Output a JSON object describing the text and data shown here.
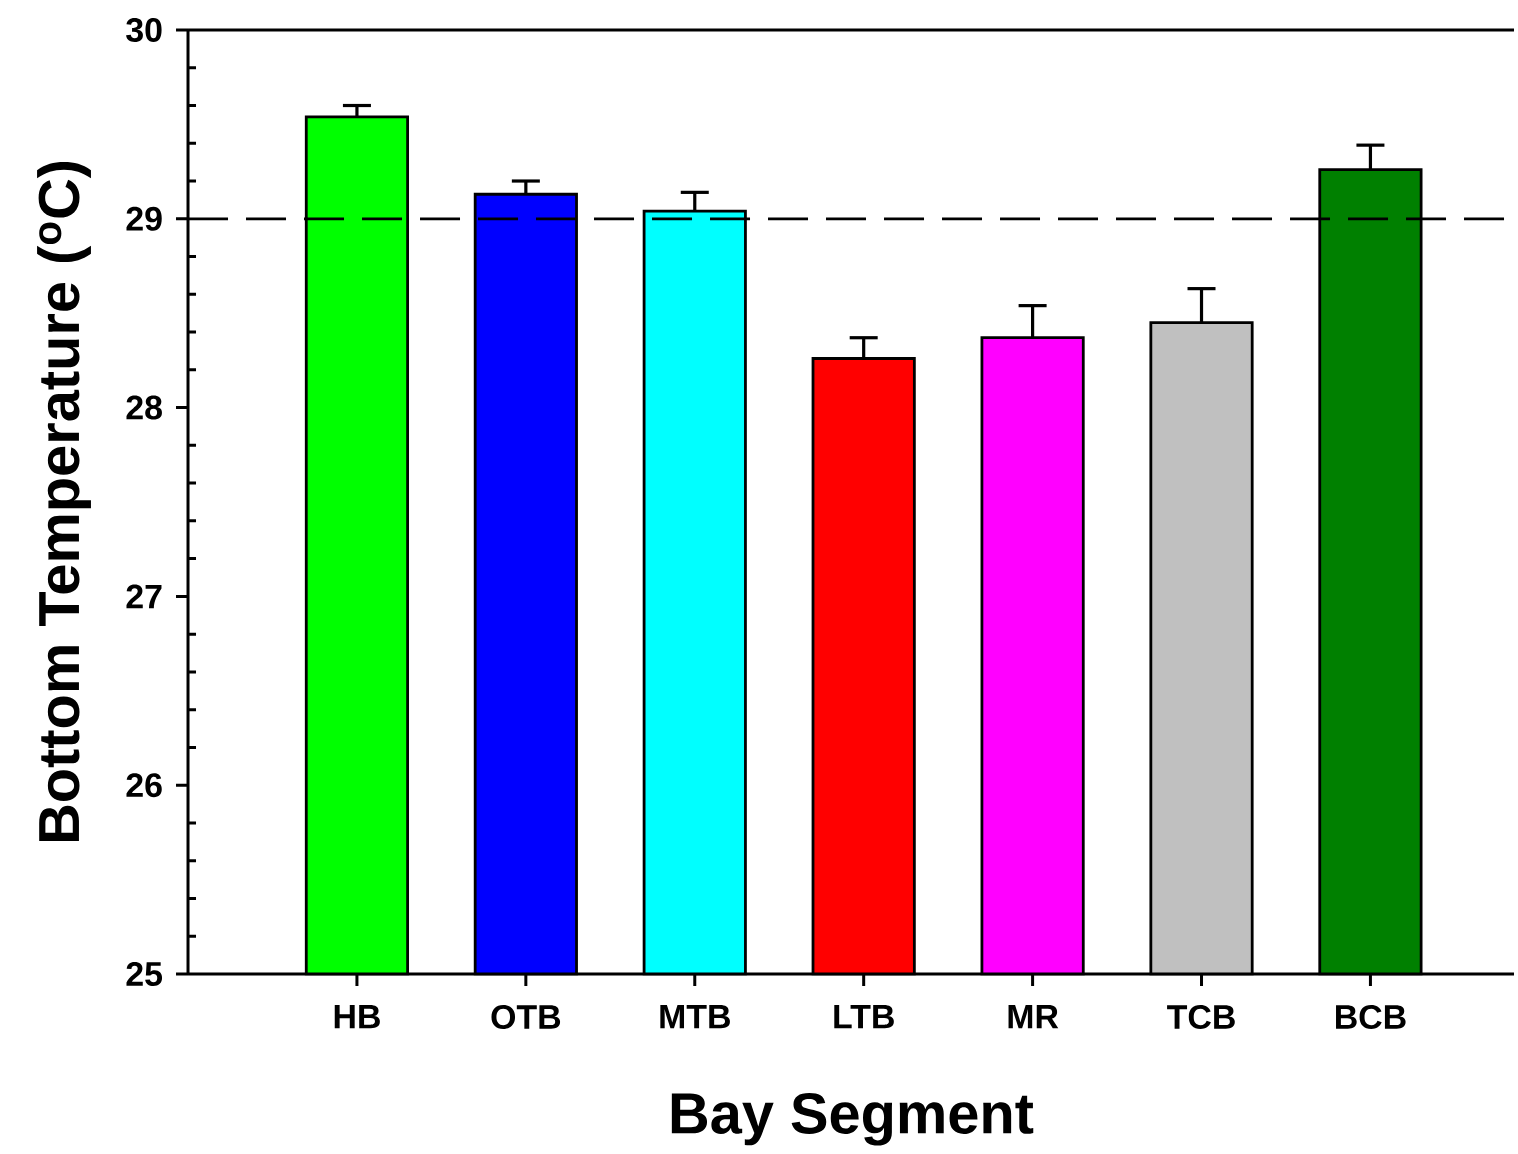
{
  "chart_data": {
    "type": "bar",
    "xlabel": "Bay Segment",
    "ylabel": "Bottom Temperature ($^{o}$C)",
    "categories": [
      "HB",
      "OTB",
      "MTB",
      "LTB",
      "MR",
      "TCB",
      "BCB"
    ],
    "values": [
      29.54,
      29.13,
      29.04,
      28.26,
      28.37,
      28.45,
      29.26
    ],
    "colors": [
      "#00ff00",
      "#0000ff",
      "#00ffff",
      "#ff0000",
      "#ff00ff",
      "#c0c0c0",
      "#008000"
    ],
    "errors": [
      [
        29.54,
        29.6
      ],
      [
        29.13,
        29.2
      ],
      [
        29.04,
        29.14
      ],
      [
        28.26,
        28.37
      ],
      [
        28.37,
        28.54
      ],
      [
        28.45,
        28.63
      ],
      [
        29.26,
        29.39
      ]
    ],
    "ylim": [
      25,
      30
    ],
    "yticks": [
      25,
      26,
      27,
      28,
      29,
      30
    ],
    "ref_lines": [
      {
        "axis": "y",
        "value": 29,
        "line_style": "dashed",
        "color": "#000000"
      }
    ]
  }
}
